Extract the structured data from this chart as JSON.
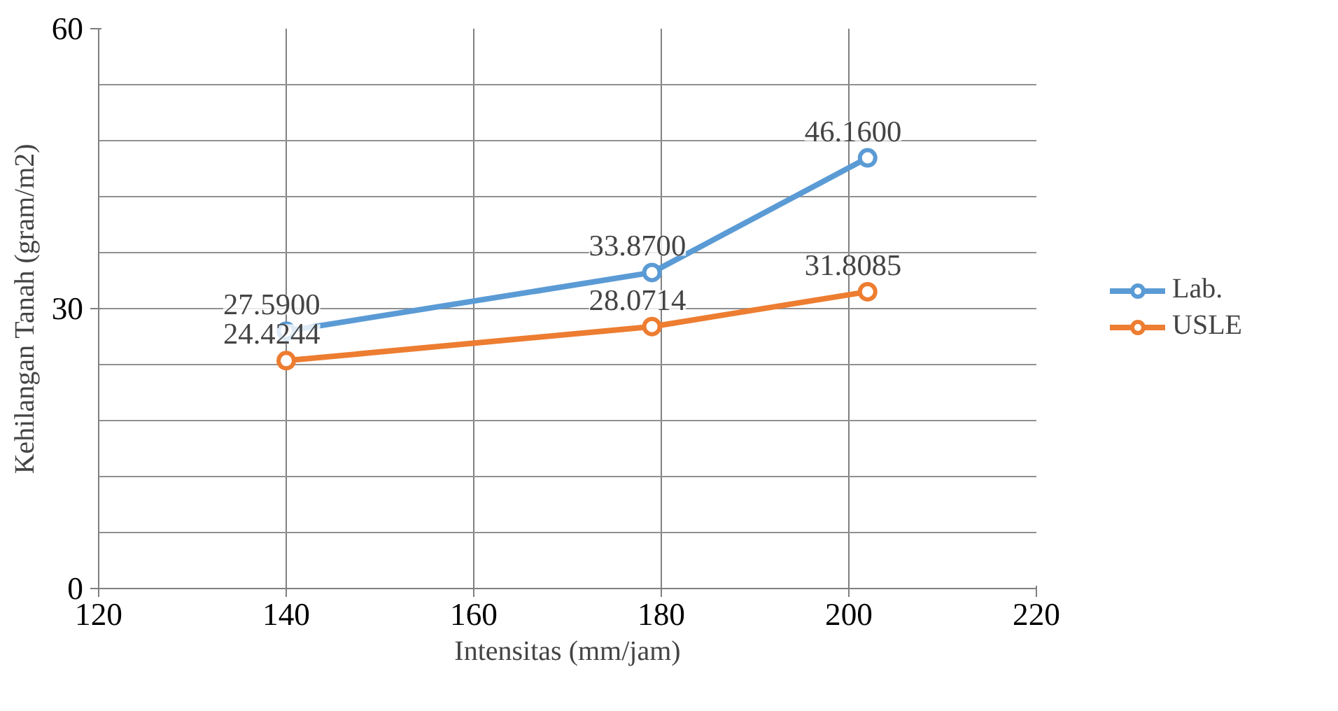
{
  "chart_data": {
    "type": "line",
    "xlabel": "Intensitas (mm/jam)",
    "ylabel": "Kehilangan Tanah (gram/m2)",
    "xlim": [
      120,
      220
    ],
    "xticks": [
      120,
      140,
      160,
      180,
      200,
      220
    ],
    "ylim": [
      0,
      60
    ],
    "yticks": [
      0,
      {
        "value": 6,
        "label": null
      },
      {
        "value": 12,
        "label": null
      },
      {
        "value": 18,
        "label": null
      },
      {
        "value": 24,
        "label": null
      },
      30,
      {
        "value": 36,
        "label": null
      },
      {
        "value": 42,
        "label": null
      },
      {
        "value": 48,
        "label": null
      },
      {
        "value": 54,
        "label": null
      },
      60
    ],
    "grid": true,
    "legend": "right",
    "marker": "circle",
    "line_style": "solid",
    "series": [
      {
        "name": "Lab.",
        "color": "#5b9bd5",
        "x": [
          140,
          179,
          202
        ],
        "values": [
          27.59,
          33.87,
          46.16
        ],
        "value_labels": [
          "27.5900",
          "33.8700",
          "46.1600"
        ]
      },
      {
        "name": "USLE",
        "color": "#ed7d31",
        "x": [
          140,
          179,
          202
        ],
        "values": [
          24.4244,
          28.0714,
          31.8085
        ],
        "value_labels": [
          "24.4244",
          "28.0714",
          "31.8085"
        ]
      }
    ]
  }
}
